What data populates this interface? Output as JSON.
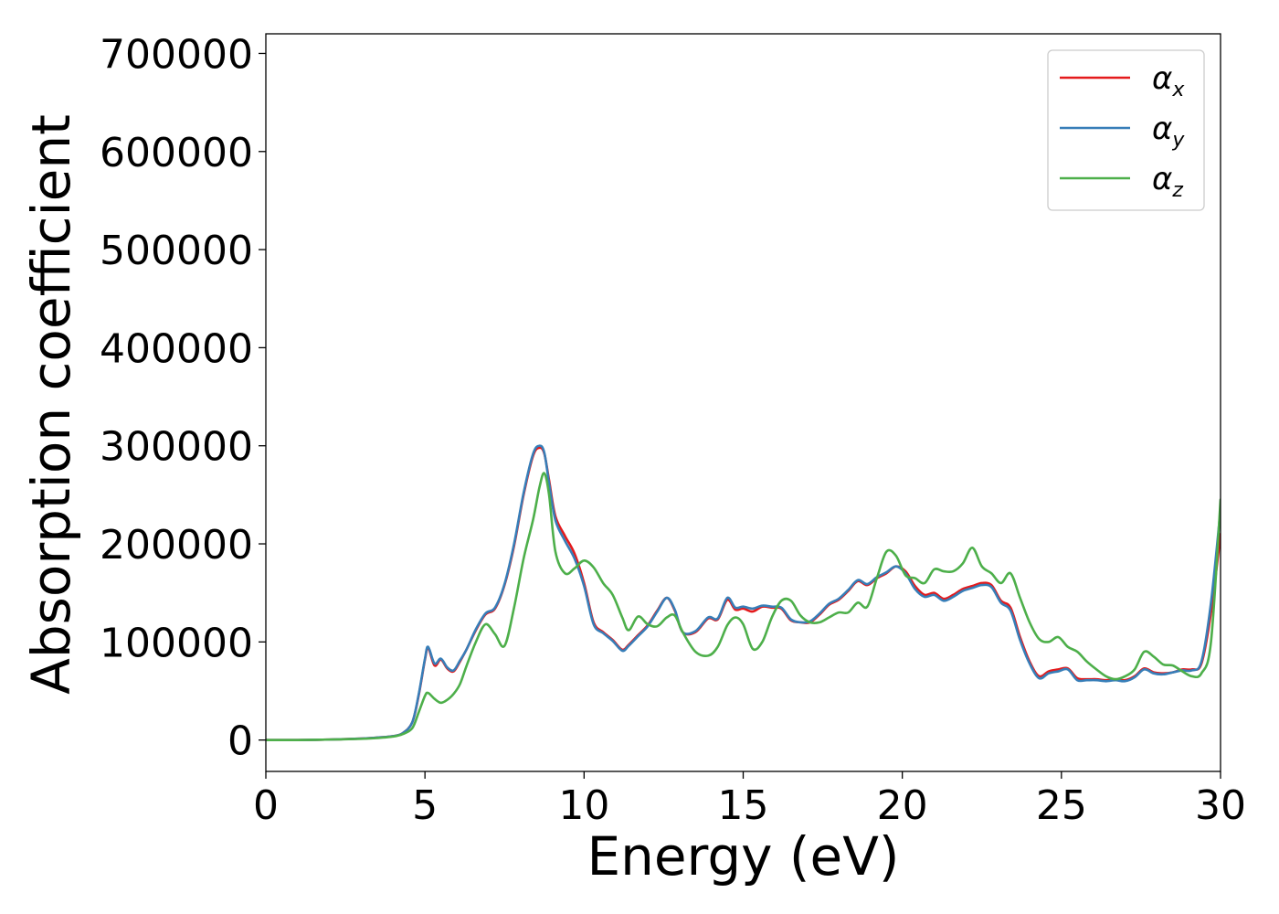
{
  "chart_data": {
    "type": "line",
    "title": "",
    "xlabel": "Energy (eV)",
    "ylabel": "Absorption coefficient",
    "xlim": [
      0,
      30
    ],
    "ylim": [
      -32000,
      720000
    ],
    "xticks": [
      0,
      5,
      10,
      15,
      20,
      25,
      30
    ],
    "xtick_labels": [
      "0",
      "5",
      "10",
      "15",
      "20",
      "25",
      "30"
    ],
    "yticks": [
      0,
      100000,
      200000,
      300000,
      400000,
      500000,
      600000,
      700000
    ],
    "ytick_labels": [
      "0",
      "100000",
      "200000",
      "300000",
      "400000",
      "500000",
      "600000",
      "700000"
    ],
    "grid": false,
    "legend_position": "top-right",
    "series": [
      {
        "name": "α_x",
        "symbol": "α",
        "subscript": "x",
        "color": "#e41a1c",
        "x": [
          0,
          1,
          2,
          3,
          3.5,
          4,
          4.3,
          4.6,
          4.8,
          5.0,
          5.1,
          5.3,
          5.5,
          5.7,
          5.9,
          6.1,
          6.3,
          6.6,
          6.9,
          7.2,
          7.5,
          7.8,
          8.1,
          8.4,
          8.6,
          8.75,
          8.9,
          9.1,
          9.4,
          9.7,
          10.0,
          10.3,
          10.6,
          10.9,
          11.2,
          11.4,
          11.7,
          12.0,
          12.3,
          12.6,
          12.85,
          13.1,
          13.5,
          13.9,
          14.2,
          14.5,
          14.75,
          15.0,
          15.3,
          15.6,
          15.9,
          16.2,
          16.5,
          16.8,
          17.1,
          17.4,
          17.7,
          18.0,
          18.3,
          18.6,
          18.9,
          19.2,
          19.5,
          19.8,
          20.1,
          20.4,
          20.7,
          21.0,
          21.3,
          21.6,
          21.9,
          22.2,
          22.5,
          22.8,
          23.1,
          23.4,
          23.7,
          24.0,
          24.3,
          24.6,
          24.9,
          25.2,
          25.5,
          25.8,
          26.1,
          26.4,
          26.7,
          27.0,
          27.3,
          27.6,
          27.9,
          28.2,
          28.5,
          28.8,
          29.1,
          29.4,
          29.7,
          30.0
        ],
        "values": [
          0,
          0,
          500,
          1500,
          2500,
          4000,
          7000,
          18000,
          45000,
          82000,
          94000,
          76000,
          82000,
          73000,
          70000,
          80000,
          92000,
          112000,
          128000,
          134000,
          158000,
          198000,
          250000,
          290000,
          298000,
          292000,
          265000,
          228000,
          208000,
          190000,
          160000,
          120000,
          110000,
          102000,
          92000,
          97000,
          107000,
          117000,
          132000,
          145000,
          132000,
          110000,
          110000,
          124000,
          123000,
          143000,
          133000,
          134000,
          131000,
          136000,
          135000,
          134000,
          122000,
          120000,
          120000,
          128000,
          138000,
          143000,
          152000,
          162000,
          158000,
          165000,
          170000,
          177000,
          172000,
          157000,
          148000,
          150000,
          144000,
          148000,
          154000,
          157000,
          160000,
          158000,
          142000,
          135000,
          105000,
          80000,
          65000,
          70000,
          72000,
          73000,
          63000,
          62000,
          62000,
          61000,
          62000,
          61000,
          65000,
          73000,
          69000,
          68000,
          69000,
          72000,
          72000,
          78000,
          130000,
          210000
        ]
      },
      {
        "name": "α_y",
        "symbol": "α",
        "subscript": "y",
        "color": "#377eb8",
        "x": [
          0,
          1,
          2,
          3,
          3.5,
          4,
          4.3,
          4.6,
          4.8,
          5.0,
          5.1,
          5.3,
          5.5,
          5.7,
          5.9,
          6.1,
          6.3,
          6.6,
          6.9,
          7.2,
          7.5,
          7.8,
          8.1,
          8.4,
          8.6,
          8.75,
          8.9,
          9.1,
          9.4,
          9.7,
          10.0,
          10.3,
          10.6,
          10.9,
          11.2,
          11.4,
          11.7,
          12.0,
          12.3,
          12.6,
          12.85,
          13.1,
          13.5,
          13.9,
          14.2,
          14.5,
          14.75,
          15.0,
          15.3,
          15.6,
          15.9,
          16.2,
          16.5,
          16.8,
          17.1,
          17.4,
          17.7,
          18.0,
          18.3,
          18.6,
          18.9,
          19.2,
          19.5,
          19.8,
          20.1,
          20.4,
          20.7,
          21.0,
          21.3,
          21.6,
          21.9,
          22.2,
          22.5,
          22.8,
          23.1,
          23.4,
          23.7,
          24.0,
          24.3,
          24.6,
          24.9,
          25.2,
          25.5,
          25.8,
          26.1,
          26.4,
          26.7,
          27.0,
          27.3,
          27.6,
          27.9,
          28.2,
          28.5,
          28.8,
          29.1,
          29.4,
          29.7,
          30.0
        ],
        "values": [
          0,
          0,
          500,
          1500,
          2500,
          4000,
          7000,
          18000,
          46000,
          83000,
          95000,
          78000,
          83000,
          74000,
          71000,
          81000,
          92000,
          113000,
          129000,
          135000,
          159000,
          200000,
          252000,
          292000,
          300000,
          293000,
          262000,
          224000,
          203000,
          185000,
          157000,
          118000,
          109000,
          101000,
          91000,
          96000,
          106000,
          116000,
          131000,
          145000,
          133000,
          110000,
          111000,
          125000,
          124000,
          145000,
          135000,
          136000,
          134000,
          137000,
          136000,
          135000,
          123000,
          120000,
          121000,
          129000,
          139000,
          144000,
          153000,
          163000,
          159000,
          166000,
          171000,
          177000,
          170000,
          154000,
          146000,
          148000,
          142000,
          146000,
          152000,
          155000,
          158000,
          156000,
          140000,
          132000,
          102000,
          78000,
          63000,
          68000,
          70000,
          72000,
          61000,
          61000,
          61000,
          60000,
          61000,
          60000,
          64000,
          72000,
          68000,
          67000,
          69000,
          71000,
          71000,
          80000,
          140000,
          235000
        ]
      },
      {
        "name": "α_z",
        "symbol": "α",
        "subscript": "z",
        "color": "#4daf4a",
        "x": [
          0,
          1,
          2,
          3,
          3.5,
          4,
          4.3,
          4.6,
          4.8,
          5.0,
          5.1,
          5.3,
          5.5,
          5.7,
          5.9,
          6.1,
          6.3,
          6.6,
          6.9,
          7.2,
          7.5,
          7.8,
          8.1,
          8.4,
          8.6,
          8.75,
          8.9,
          9.1,
          9.4,
          9.7,
          10.0,
          10.3,
          10.6,
          10.9,
          11.2,
          11.4,
          11.7,
          12.0,
          12.3,
          12.6,
          12.85,
          13.1,
          13.5,
          13.9,
          14.2,
          14.5,
          14.75,
          15.0,
          15.3,
          15.6,
          15.9,
          16.2,
          16.5,
          16.8,
          17.1,
          17.4,
          17.7,
          18.0,
          18.3,
          18.6,
          18.9,
          19.2,
          19.5,
          19.8,
          20.1,
          20.4,
          20.7,
          21.0,
          21.3,
          21.6,
          21.9,
          22.2,
          22.5,
          22.8,
          23.1,
          23.4,
          23.7,
          24.0,
          24.3,
          24.6,
          24.9,
          25.2,
          25.5,
          25.8,
          26.1,
          26.4,
          26.7,
          27.0,
          27.3,
          27.6,
          27.9,
          28.2,
          28.5,
          28.8,
          29.1,
          29.4,
          29.7,
          30.0
        ],
        "values": [
          0,
          0,
          500,
          1200,
          2000,
          3500,
          6000,
          12000,
          28000,
          45000,
          48000,
          42000,
          38000,
          41000,
          47000,
          57000,
          75000,
          100000,
          118000,
          108000,
          96000,
          135000,
          185000,
          225000,
          258000,
          272000,
          250000,
          192000,
          170000,
          175000,
          183000,
          176000,
          160000,
          148000,
          125000,
          112000,
          126000,
          118000,
          116000,
          125000,
          127000,
          110000,
          90000,
          86000,
          95000,
          117000,
          125000,
          118000,
          93000,
          100000,
          125000,
          142000,
          142000,
          127000,
          120000,
          120000,
          125000,
          130000,
          130000,
          140000,
          136000,
          165000,
          192000,
          188000,
          168000,
          165000,
          160000,
          174000,
          172000,
          172000,
          180000,
          196000,
          177000,
          170000,
          160000,
          170000,
          145000,
          120000,
          103000,
          100000,
          105000,
          95000,
          90000,
          80000,
          72000,
          65000,
          62000,
          65000,
          72000,
          90000,
          85000,
          77000,
          76000,
          70000,
          65000,
          68000,
          100000,
          245000
        ]
      }
    ]
  }
}
